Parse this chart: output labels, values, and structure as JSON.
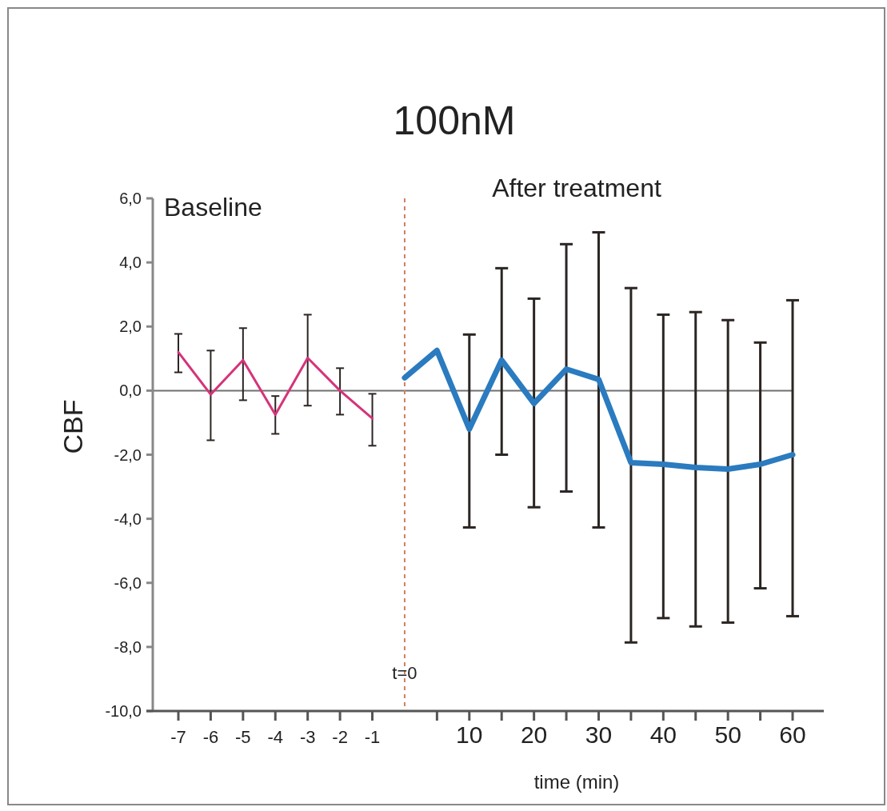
{
  "chart_data": {
    "type": "line",
    "title": "100nM",
    "xlabel": "time (min)",
    "ylabel": "CBF",
    "annotations": [
      "Baseline",
      "After treatment"
    ],
    "categories": [
      "-7",
      "-6",
      "-5",
      "-4",
      "-3",
      "-2",
      "-1",
      "t=0",
      null,
      "10",
      null,
      "20",
      null,
      "30",
      null,
      "40",
      null,
      "50",
      null,
      "60"
    ],
    "ylim": [
      -10,
      6
    ],
    "yticks": [
      {
        "value": -10,
        "label": "-10,0"
      },
      {
        "value": -8,
        "label": "-8,0"
      },
      {
        "value": -6,
        "label": "-6,0"
      },
      {
        "value": -4,
        "label": "-4,0"
      },
      {
        "value": -2,
        "label": "-2,0"
      },
      {
        "value": 0,
        "label": "0,0"
      },
      {
        "value": 2,
        "label": "2,0"
      },
      {
        "value": 4,
        "label": "4,0"
      },
      {
        "value": 6,
        "label": "6,0"
      }
    ],
    "grid": false,
    "marker": "none",
    "line_style": "solid",
    "ref_lines": [
      {
        "axis": "y",
        "value": 0,
        "color": "#707070",
        "line_style": "solid"
      },
      {
        "axis": "x",
        "value": "t=0",
        "color": "#d08060",
        "line_style": "dashed"
      }
    ],
    "series": [
      {
        "color": "#d6337a",
        "values": [
          1.2,
          -0.12,
          0.95,
          -0.75,
          1.02,
          0.0,
          -0.87,
          null,
          null,
          null,
          null,
          null,
          null,
          null,
          null,
          null,
          null,
          null,
          null,
          null
        ],
        "errors": [
          [
            0.57,
            1.77
          ],
          [
            -1.55,
            1.25
          ],
          [
            -0.3,
            1.95
          ],
          [
            -1.35,
            -0.17
          ],
          [
            -0.47,
            2.37
          ],
          [
            -0.75,
            0.7
          ],
          [
            -1.72,
            -0.1
          ],
          null,
          null,
          null,
          null,
          null,
          null,
          null,
          null,
          null,
          null,
          null,
          null,
          null
        ]
      },
      {
        "color": "#2a7bbf",
        "values": [
          null,
          null,
          null,
          null,
          null,
          null,
          null,
          0.4,
          1.25,
          -1.2,
          0.95,
          -0.4,
          0.67,
          0.35,
          -2.25,
          -2.3,
          -2.4,
          -2.45,
          -2.3,
          -2.0
        ],
        "errors": [
          null,
          null,
          null,
          null,
          null,
          null,
          null,
          null,
          null,
          [
            -4.27,
            1.75
          ],
          [
            -2.0,
            3.82
          ],
          [
            -3.64,
            2.87
          ],
          [
            -3.15,
            4.57
          ],
          [
            -4.27,
            4.94
          ],
          [
            -7.86,
            3.2
          ],
          [
            -7.1,
            2.37
          ],
          [
            -7.36,
            2.45
          ],
          [
            -7.24,
            2.2
          ],
          [
            -6.17,
            1.5
          ],
          [
            -7.04,
            2.82
          ]
        ]
      }
    ]
  }
}
